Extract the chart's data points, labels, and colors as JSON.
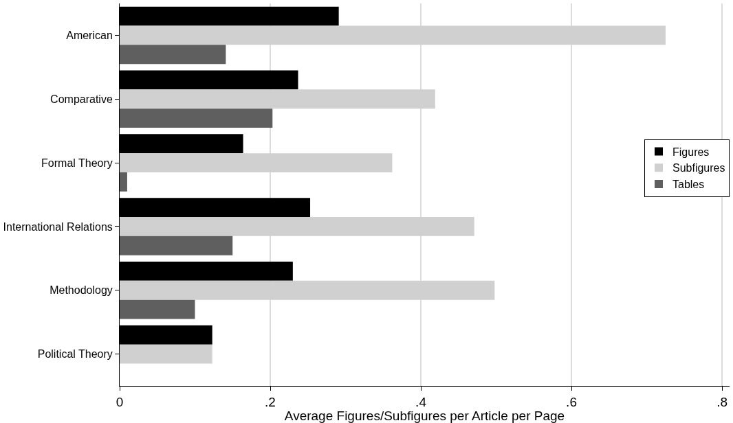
{
  "chart_data": {
    "type": "bar",
    "orientation": "horizontal",
    "xlabel": "Average Figures/Subfigures per Article per Page",
    "categories": [
      "American",
      "Comparative",
      "Formal Theory",
      "International Relations",
      "Methodology",
      "Political Theory"
    ],
    "series": [
      {
        "name": "Figures",
        "color": "#000000",
        "values": [
          0.291,
          0.237,
          0.164,
          0.253,
          0.23,
          0.123
        ]
      },
      {
        "name": "Subfigures",
        "color": "#d0d0d0",
        "values": [
          0.725,
          0.419,
          0.362,
          0.471,
          0.498,
          0.123
        ]
      },
      {
        "name": "Tables",
        "color": "#5f5f5f",
        "values": [
          0.141,
          0.203,
          0.01,
          0.15,
          0.1,
          0
        ]
      }
    ],
    "xlim": [
      0,
      0.81
    ],
    "xticks": [
      0,
      {
        "value": 0.2,
        "label": ".2"
      },
      {
        "value": 0.4,
        "label": ".4"
      },
      {
        "value": 0.6,
        "label": ".6"
      },
      {
        "value": 0.8,
        "label": ".8"
      }
    ],
    "grid": "x",
    "legend": "right"
  }
}
